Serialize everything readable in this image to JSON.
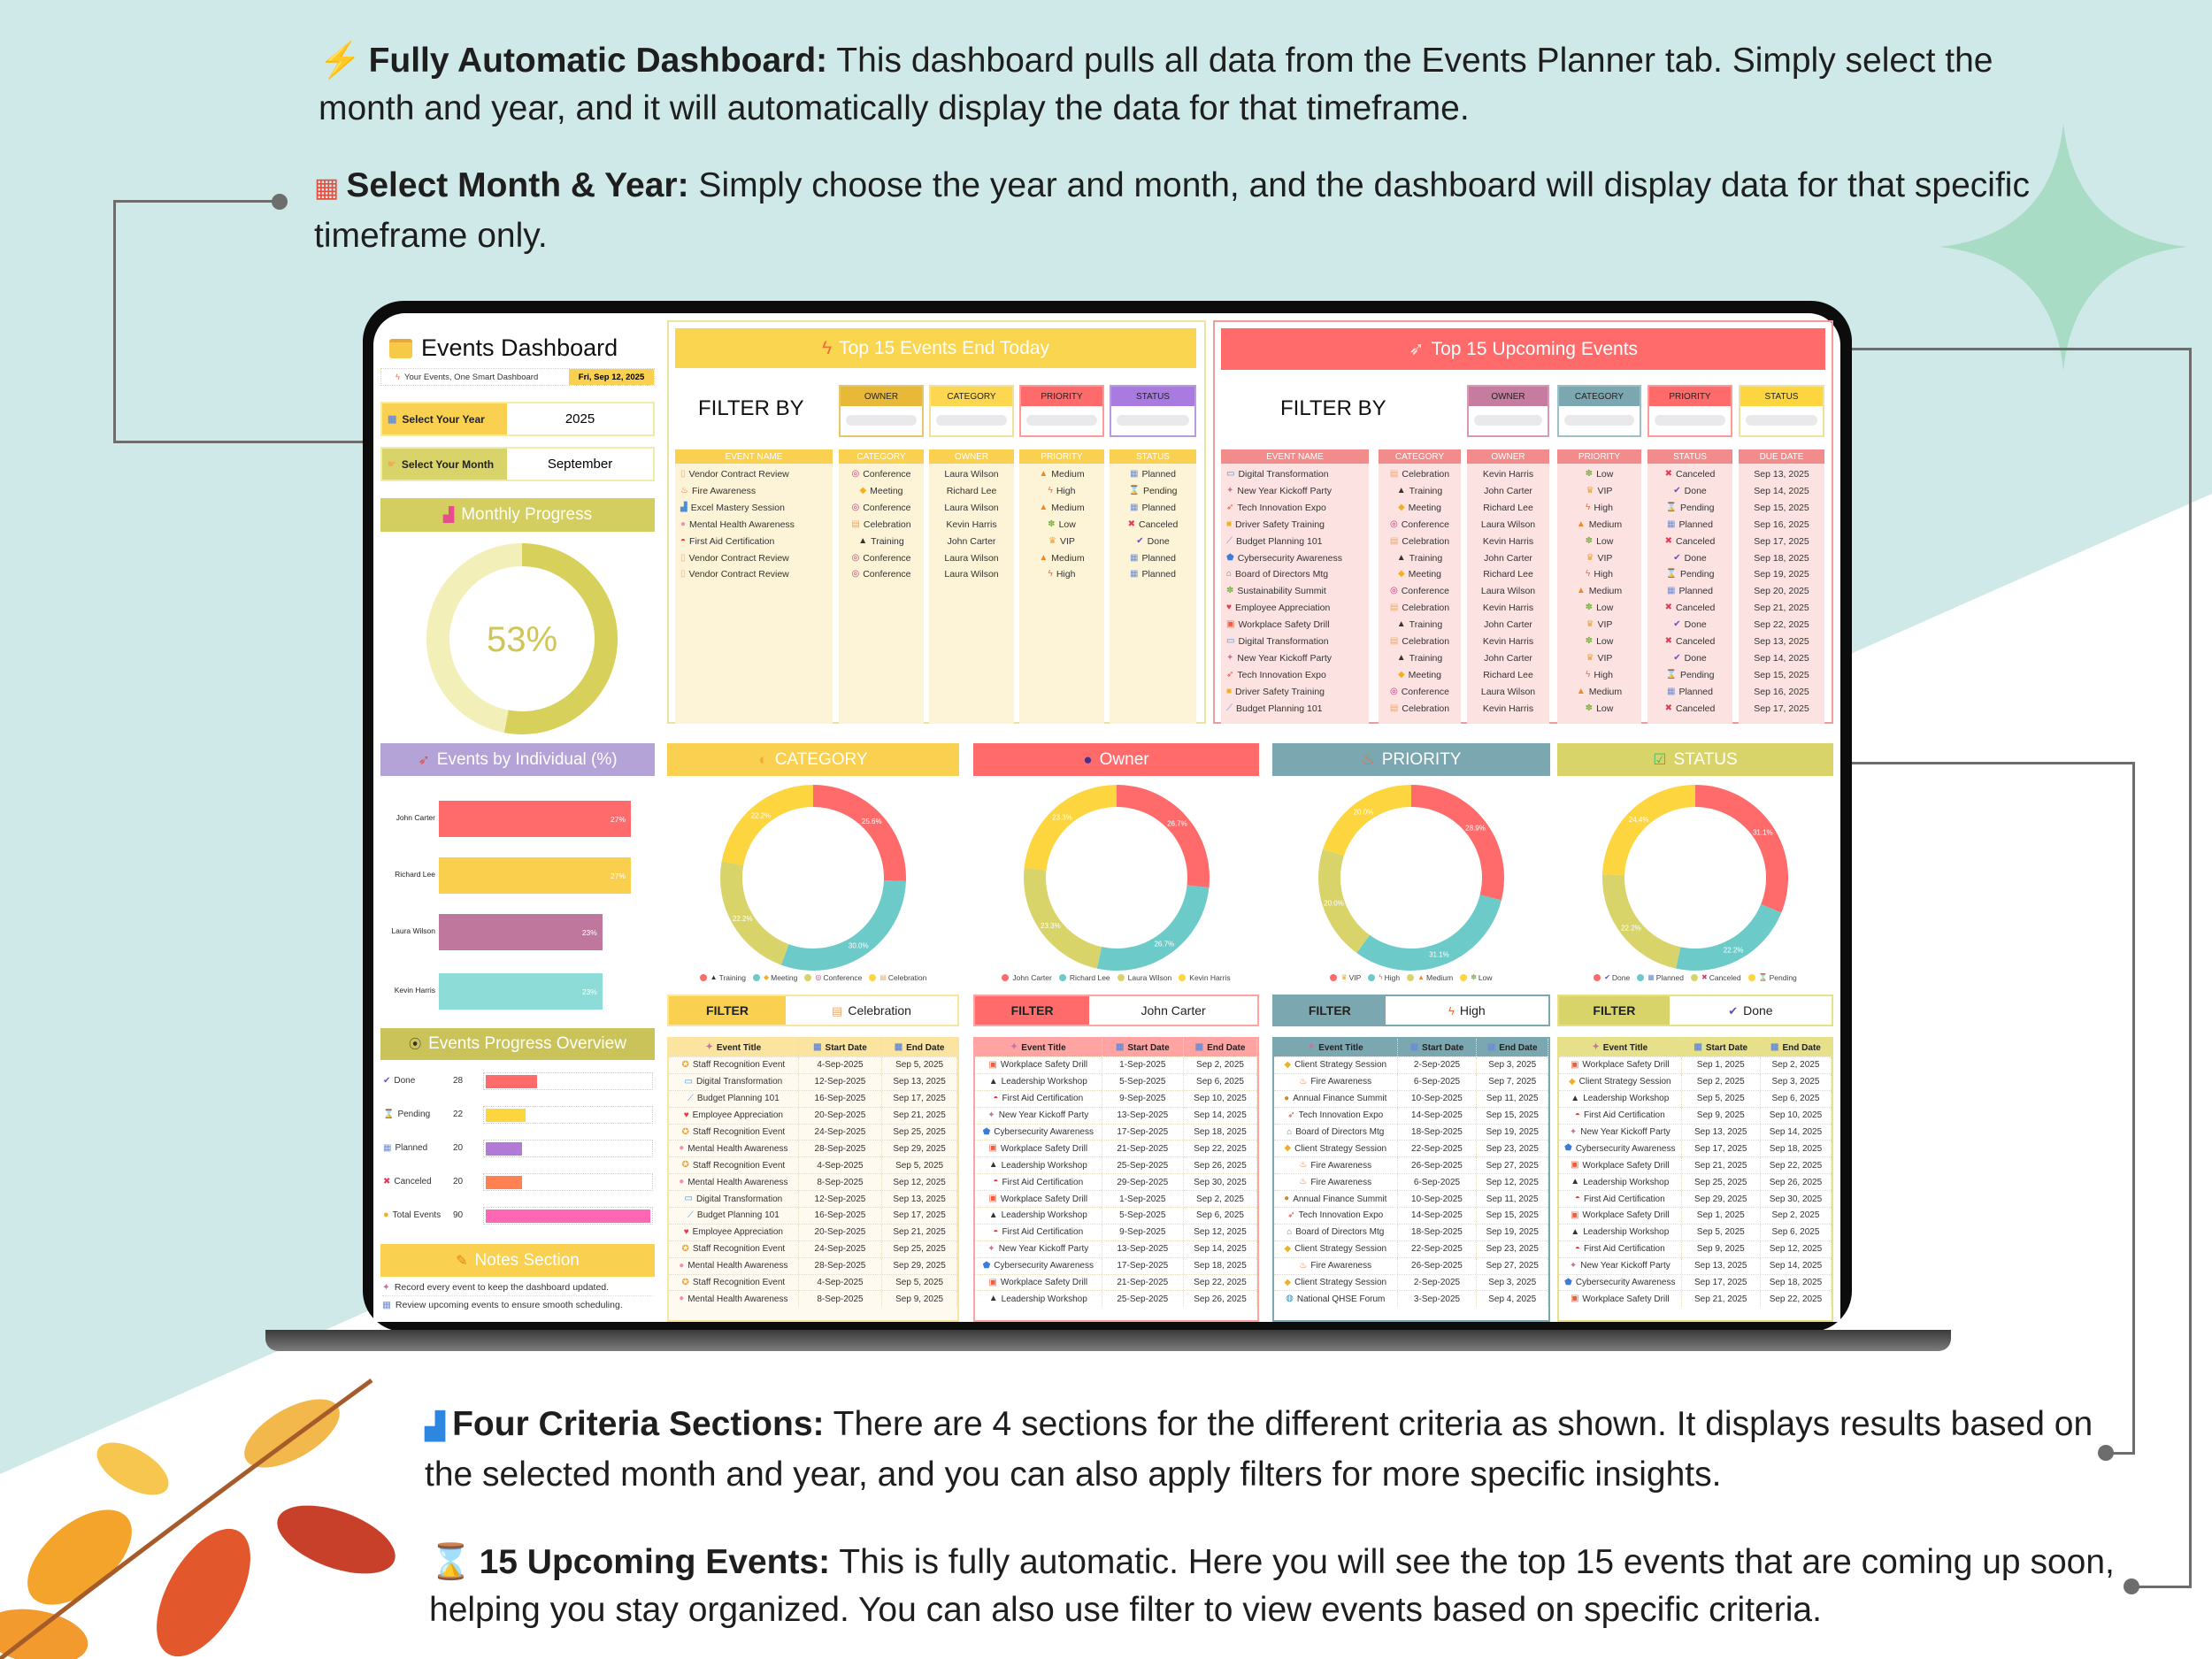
{
  "intro": [
    {
      "icon": "lightning-icon",
      "bold": "Fully Automatic Dashboard:",
      "text": " This dashboard pulls all data from the Events Planner tab. Simply select the month and year, and it will automatically display the data for that timeframe."
    },
    {
      "icon": "calendar-icon",
      "bold": "Select Month & Year:",
      "text": " Simply choose the year and month, and the dashboard will display data for that specific timeframe only."
    }
  ],
  "outro": [
    {
      "icon": "bar-chart-icon",
      "bold": "Four Criteria Sections:",
      "text": " There are 4 sections for the different criteria as shown. It displays results based on the selected month and year, and you can also apply filters for more specific insights."
    },
    {
      "icon": "hourglass-icon",
      "bold": "15 Upcoming Events:",
      "text": " This is fully automatic. Here you will see the top 15 events that are coming up soon, helping you stay organized. You can also use filter to view events based on specific criteria."
    }
  ],
  "colors": {
    "red": "#ff6b6b",
    "teal": "#6ccbc9",
    "olive": "#d9d46a",
    "yellow": "#fcd53f",
    "background": "#cfe9e9"
  },
  "dashboard": {
    "title": "Events Dashboard",
    "subtitle": "Your Events, One Smart Dashboard",
    "date": "Fri, Sep 12, 2025",
    "year_label": "Select Your Year",
    "year": "2025",
    "month_label": "Select Your Month",
    "month": "September",
    "monthly_progress_title": "Monthly Progress",
    "individual_title": "Events by Individual (%)",
    "progress_overview_title": "Events Progress Overview",
    "notes_title": "Notes Section",
    "notes": [
      "Record every event to keep the dashboard updated.",
      "Review upcoming events to ensure smooth scheduling."
    ]
  },
  "end_today": {
    "title": "Top 15 Events End Today",
    "filter_by": "FILTER BY",
    "filters": [
      {
        "label": "OWNER",
        "value": ""
      },
      {
        "label": "CATEGORY",
        "value": ""
      },
      {
        "label": "PRIORITY",
        "value": ""
      },
      {
        "label": "STATUS",
        "value": ""
      }
    ],
    "columns": [
      "EVENT NAME",
      "CATEGORY",
      "OWNER",
      "PRIORITY",
      "STATUS"
    ],
    "rows": [
      [
        "Vendor Contract Review",
        "Conference",
        "Laura Wilson",
        "Medium",
        "Planned"
      ],
      [
        "Fire Awareness",
        "Meeting",
        "Richard Lee",
        "High",
        "Pending"
      ],
      [
        "Excel Mastery Session",
        "Conference",
        "Laura Wilson",
        "Medium",
        "Planned"
      ],
      [
        "Mental Health Awareness",
        "Celebration",
        "Kevin Harris",
        "Low",
        "Canceled"
      ],
      [
        "First Aid Certification",
        "Training",
        "John Carter",
        "VIP",
        "Done"
      ],
      [
        "Vendor Contract Review",
        "Conference",
        "Laura Wilson",
        "Medium",
        "Planned"
      ],
      [
        "Vendor Contract Review",
        "Conference",
        "Laura Wilson",
        "High",
        "Planned"
      ]
    ]
  },
  "upcoming": {
    "title": "Top 15 Upcoming Events",
    "filter_by": "FILTER BY",
    "filters": [
      {
        "label": "OWNER",
        "value": ""
      },
      {
        "label": "CATEGORY",
        "value": ""
      },
      {
        "label": "PRIORITY",
        "value": ""
      },
      {
        "label": "STATUS",
        "value": ""
      }
    ],
    "columns": [
      "EVENT NAME",
      "CATEGORY",
      "OWNER",
      "PRIORITY",
      "STATUS",
      "DUE DATE"
    ],
    "rows": [
      [
        "Digital Transformation",
        "Celebration",
        "Kevin Harris",
        "Low",
        "Canceled",
        "Sep 13, 2025"
      ],
      [
        "New Year Kickoff Party",
        "Training",
        "John Carter",
        "VIP",
        "Done",
        "Sep 14, 2025"
      ],
      [
        "Tech Innovation Expo",
        "Meeting",
        "Richard Lee",
        "High",
        "Pending",
        "Sep 15, 2025"
      ],
      [
        "Driver Safety Training",
        "Conference",
        "Laura Wilson",
        "Medium",
        "Planned",
        "Sep 16, 2025"
      ],
      [
        "Budget Planning 101",
        "Celebration",
        "Kevin Harris",
        "Low",
        "Canceled",
        "Sep 17, 2025"
      ],
      [
        "Cybersecurity Awareness",
        "Training",
        "John Carter",
        "VIP",
        "Done",
        "Sep 18, 2025"
      ],
      [
        "Board of Directors Mtg",
        "Meeting",
        "Richard Lee",
        "High",
        "Pending",
        "Sep 19, 2025"
      ],
      [
        "Sustainability Summit",
        "Conference",
        "Laura Wilson",
        "Medium",
        "Planned",
        "Sep 20, 2025"
      ],
      [
        "Employee Appreciation",
        "Celebration",
        "Kevin Harris",
        "Low",
        "Canceled",
        "Sep 21, 2025"
      ],
      [
        "Workplace Safety Drill",
        "Training",
        "John Carter",
        "VIP",
        "Done",
        "Sep 22, 2025"
      ],
      [
        "Digital Transformation",
        "Celebration",
        "Kevin Harris",
        "Low",
        "Canceled",
        "Sep 13, 2025"
      ],
      [
        "New Year Kickoff Party",
        "Training",
        "John Carter",
        "VIP",
        "Done",
        "Sep 14, 2025"
      ],
      [
        "Tech Innovation Expo",
        "Meeting",
        "Richard Lee",
        "High",
        "Pending",
        "Sep 15, 2025"
      ],
      [
        "Driver Safety Training",
        "Conference",
        "Laura Wilson",
        "Medium",
        "Planned",
        "Sep 16, 2025"
      ],
      [
        "Budget Planning 101",
        "Celebration",
        "Kevin Harris",
        "Low",
        "Canceled",
        "Sep 17, 2025"
      ]
    ]
  },
  "criteria": [
    {
      "key": "category",
      "title": "CATEGORY",
      "icon": "palette-icon",
      "header_color": "#f9d04f",
      "filter_label": "FILTER",
      "filter_value": "Celebration",
      "table_color": "#fbe3a0",
      "columns": [
        "Event Title",
        "Start Date",
        "End Date"
      ],
      "rows": [
        [
          "Staff Recognition Event",
          "4-Sep-2025",
          "Sep 5, 2025"
        ],
        [
          "Digital Transformation",
          "12-Sep-2025",
          "Sep 13, 2025"
        ],
        [
          "Budget Planning 101",
          "16-Sep-2025",
          "Sep 17, 2025"
        ],
        [
          "Employee Appreciation",
          "20-Sep-2025",
          "Sep 21, 2025"
        ],
        [
          "Staff Recognition Event",
          "24-Sep-2025",
          "Sep 25, 2025"
        ],
        [
          "Mental Health Awareness",
          "28-Sep-2025",
          "Sep 29, 2025"
        ],
        [
          "Staff Recognition Event",
          "4-Sep-2025",
          "Sep 5, 2025"
        ],
        [
          "Mental Health Awareness",
          "8-Sep-2025",
          "Sep 12, 2025"
        ],
        [
          "Digital Transformation",
          "12-Sep-2025",
          "Sep 13, 2025"
        ],
        [
          "Budget Planning 101",
          "16-Sep-2025",
          "Sep 17, 2025"
        ],
        [
          "Employee Appreciation",
          "20-Sep-2025",
          "Sep 21, 2025"
        ],
        [
          "Staff Recognition Event",
          "24-Sep-2025",
          "Sep 25, 2025"
        ],
        [
          "Mental Health Awareness",
          "28-Sep-2025",
          "Sep 29, 2025"
        ],
        [
          "Staff Recognition Event",
          "4-Sep-2025",
          "Sep 5, 2025"
        ],
        [
          "Mental Health Awareness",
          "8-Sep-2025",
          "Sep 9, 2025"
        ]
      ]
    },
    {
      "key": "owner",
      "title": "Owner",
      "icon": "person-icon",
      "header_color": "#ff6b6b",
      "filter_label": "FILTER",
      "filter_value": "John Carter",
      "table_color": "#ffa3a3",
      "columns": [
        "Event Title",
        "Start Date",
        "End Date"
      ],
      "rows": [
        [
          "Workplace Safety Drill",
          "1-Sep-2025",
          "Sep 2, 2025"
        ],
        [
          "Leadership Workshop",
          "5-Sep-2025",
          "Sep 6, 2025"
        ],
        [
          "First Aid Certification",
          "9-Sep-2025",
          "Sep 10, 2025"
        ],
        [
          "New Year Kickoff Party",
          "13-Sep-2025",
          "Sep 14, 2025"
        ],
        [
          "Cybersecurity Awareness",
          "17-Sep-2025",
          "Sep 18, 2025"
        ],
        [
          "Workplace Safety Drill",
          "21-Sep-2025",
          "Sep 22, 2025"
        ],
        [
          "Leadership Workshop",
          "25-Sep-2025",
          "Sep 26, 2025"
        ],
        [
          "First Aid Certification",
          "29-Sep-2025",
          "Sep 30, 2025"
        ],
        [
          "Workplace Safety Drill",
          "1-Sep-2025",
          "Sep 2, 2025"
        ],
        [
          "Leadership Workshop",
          "5-Sep-2025",
          "Sep 6, 2025"
        ],
        [
          "First Aid Certification",
          "9-Sep-2025",
          "Sep 12, 2025"
        ],
        [
          "New Year Kickoff Party",
          "13-Sep-2025",
          "Sep 14, 2025"
        ],
        [
          "Cybersecurity Awareness",
          "17-Sep-2025",
          "Sep 18, 2025"
        ],
        [
          "Workplace Safety Drill",
          "21-Sep-2025",
          "Sep 22, 2025"
        ],
        [
          "Leadership Workshop",
          "25-Sep-2025",
          "Sep 26, 2025"
        ]
      ]
    },
    {
      "key": "priority",
      "title": "PRIORITY",
      "icon": "fire-icon",
      "header_color": "#7aa7b0",
      "filter_label": "FILTER",
      "filter_value": "High",
      "table_color": "#7aa7b0",
      "columns": [
        "Event Title",
        "Start Date",
        "End Date"
      ],
      "rows": [
        [
          "Client Strategy Session",
          "2-Sep-2025",
          "Sep 3, 2025"
        ],
        [
          "Fire Awareness",
          "6-Sep-2025",
          "Sep 7, 2025"
        ],
        [
          "Annual Finance Summit",
          "10-Sep-2025",
          "Sep 11, 2025"
        ],
        [
          "Tech Innovation Expo",
          "14-Sep-2025",
          "Sep 15, 2025"
        ],
        [
          "Board of Directors Mtg",
          "18-Sep-2025",
          "Sep 19, 2025"
        ],
        [
          "Client Strategy Session",
          "22-Sep-2025",
          "Sep 23, 2025"
        ],
        [
          "Fire Awareness",
          "26-Sep-2025",
          "Sep 27, 2025"
        ],
        [
          "Fire Awareness",
          "6-Sep-2025",
          "Sep 12, 2025"
        ],
        [
          "Annual Finance Summit",
          "10-Sep-2025",
          "Sep 11, 2025"
        ],
        [
          "Tech Innovation Expo",
          "14-Sep-2025",
          "Sep 15, 2025"
        ],
        [
          "Board of Directors Mtg",
          "18-Sep-2025",
          "Sep 19, 2025"
        ],
        [
          "Client Strategy Session",
          "22-Sep-2025",
          "Sep 23, 2025"
        ],
        [
          "Fire Awareness",
          "26-Sep-2025",
          "Sep 27, 2025"
        ],
        [
          "Client Strategy Session",
          "2-Sep-2025",
          "Sep 3, 2025"
        ],
        [
          "National QHSE Forum",
          "3-Sep-2025",
          "Sep 4, 2025"
        ]
      ]
    },
    {
      "key": "status",
      "title": "STATUS",
      "icon": "check-box-icon",
      "header_color": "#d9d46a",
      "filter_label": "FILTER",
      "filter_value": "Done",
      "table_color": "#e6e08a",
      "columns": [
        "Event Title",
        "Start Date",
        "End Date"
      ],
      "rows": [
        [
          "Workplace Safety Drill",
          "Sep 1, 2025",
          "Sep 2, 2025"
        ],
        [
          "Client Strategy Session",
          "Sep 2, 2025",
          "Sep 3, 2025"
        ],
        [
          "Leadership Workshop",
          "Sep 5, 2025",
          "Sep 6, 2025"
        ],
        [
          "First Aid Certification",
          "Sep 9, 2025",
          "Sep 10, 2025"
        ],
        [
          "New Year Kickoff Party",
          "Sep 13, 2025",
          "Sep 14, 2025"
        ],
        [
          "Cybersecurity Awareness",
          "Sep 17, 2025",
          "Sep 18, 2025"
        ],
        [
          "Workplace Safety Drill",
          "Sep 21, 2025",
          "Sep 22, 2025"
        ],
        [
          "Leadership Workshop",
          "Sep 25, 2025",
          "Sep 26, 2025"
        ],
        [
          "First Aid Certification",
          "Sep 29, 2025",
          "Sep 30, 2025"
        ],
        [
          "Workplace Safety Drill",
          "Sep 1, 2025",
          "Sep 2, 2025"
        ],
        [
          "Leadership Workshop",
          "Sep 5, 2025",
          "Sep 6, 2025"
        ],
        [
          "First Aid Certification",
          "Sep 9, 2025",
          "Sep 12, 2025"
        ],
        [
          "New Year Kickoff Party",
          "Sep 13, 2025",
          "Sep 14, 2025"
        ],
        [
          "Cybersecurity Awareness",
          "Sep 17, 2025",
          "Sep 18, 2025"
        ],
        [
          "Workplace Safety Drill",
          "Sep 21, 2025",
          "Sep 22, 2025"
        ]
      ]
    }
  ],
  "icons": {
    "Conference": "target-icon",
    "Meeting": "handshake-icon",
    "Celebration": "cake-icon",
    "Training": "graduation-cap-icon",
    "Medium": "warning-icon",
    "High": "lightning-icon",
    "Low": "seedling-icon",
    "VIP": "crown-icon",
    "Planned": "calendar-icon",
    "Pending": "hourglass-icon",
    "Canceled": "cross-icon",
    "Done": "check-icon",
    "Vendor Contract Review": "scroll-icon",
    "Fire Awareness": "fire-icon",
    "Excel Mastery Session": "bar-chart-icon",
    "Mental Health Awareness": "brain-icon",
    "First Aid Certification": "rescue-helmet-icon",
    "Digital Transformation": "laptop-icon",
    "New Year Kickoff Party": "party-popper-icon",
    "Tech Innovation Expo": "rocket-icon",
    "Driver Safety Training": "bus-icon",
    "Budget Planning 101": "chart-up-icon",
    "Cybersecurity Awareness": "shield-icon",
    "Board of Directors Mtg": "bank-icon",
    "Sustainability Summit": "seedling-icon",
    "Employee Appreciation": "heart-icon",
    "Workplace Safety Drill": "safety-vest-icon",
    "Staff Recognition Event": "medal-icon",
    "Leadership Workshop": "graduation-cap-icon",
    "Client Strategy Session": "handshake-icon",
    "Annual Finance Summit": "money-bag-icon",
    "National QHSE Forum": "globe-icon"
  },
  "chart_data": [
    {
      "type": "pie",
      "id": "monthly_progress",
      "title": "Monthly Progress",
      "values": [
        53,
        47
      ],
      "label": "53%",
      "colors": [
        "#d7d15c",
        "#f3efb9"
      ]
    },
    {
      "type": "bar",
      "id": "individual",
      "title": "Events by Individual (%)",
      "orientation": "horizontal",
      "categories": [
        "John Carter",
        "Richard Lee",
        "Laura Wilson",
        "Kevin Harris"
      ],
      "values": [
        27,
        27,
        23,
        23
      ],
      "labels": [
        "27%",
        "27%",
        "23%",
        "23%"
      ],
      "colors": [
        "#ff6b6b",
        "#f9cf4d",
        "#c0779d",
        "#8ddcd8"
      ]
    },
    {
      "type": "bar",
      "id": "progress_overview",
      "title": "Events Progress Overview",
      "orientation": "horizontal",
      "categories": [
        "Done",
        "Pending",
        "Planned",
        "Canceled",
        "Total Events"
      ],
      "values": [
        28,
        22,
        20,
        20,
        90
      ],
      "xlim": [
        0,
        90
      ],
      "colors": [
        "#ff6b6b",
        "#fcd53f",
        "#b07ad6",
        "#ff8050",
        "#ff66b3"
      ]
    },
    {
      "type": "pie",
      "id": "category",
      "donut": true,
      "categories": [
        "Training",
        "Meeting",
        "Conference",
        "Celebration"
      ],
      "values": [
        25.6,
        30.0,
        22.2,
        22.2
      ],
      "labels": [
        "25.6%",
        "30.0%",
        "22.2%",
        "22.2%"
      ],
      "legend": "bottom"
    },
    {
      "type": "pie",
      "id": "owner",
      "donut": true,
      "categories": [
        "John Carter",
        "Richard Lee",
        "Laura Wilson",
        "Kevin Harris"
      ],
      "values": [
        26.7,
        26.7,
        23.3,
        23.3
      ],
      "labels": [
        "26.7%",
        "26.7%",
        "23.3%",
        "23.3%"
      ],
      "legend": "bottom"
    },
    {
      "type": "pie",
      "id": "priority",
      "donut": true,
      "categories": [
        "VIP",
        "High",
        "Medium",
        "Low"
      ],
      "values": [
        28.9,
        31.1,
        20.0,
        20.0
      ],
      "labels": [
        "28.9%",
        "31.1%",
        "20.0%",
        "20.0%"
      ],
      "legend": "bottom"
    },
    {
      "type": "pie",
      "id": "status",
      "donut": true,
      "categories": [
        "Done",
        "Planned",
        "Canceled",
        "Pending"
      ],
      "values": [
        31.1,
        22.2,
        22.2,
        24.4
      ],
      "labels": [
        "31.1%",
        "22.2%",
        "22.2%",
        "24.4%"
      ],
      "legend": "bottom"
    }
  ]
}
